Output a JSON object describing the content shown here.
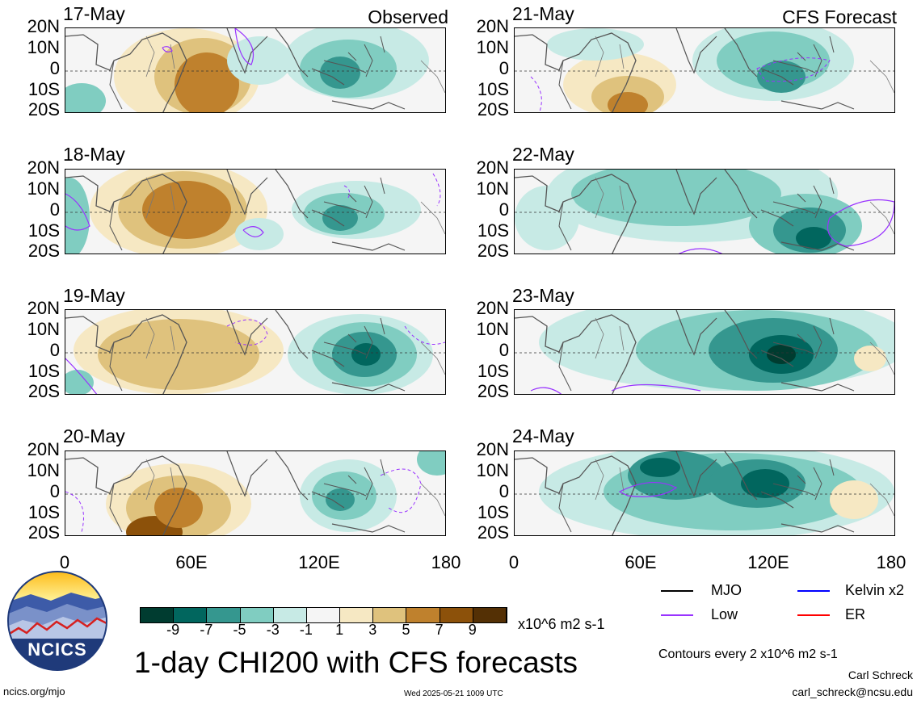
{
  "panels": {
    "left_title": "Observed",
    "right_title": "CFS Forecast",
    "left_dates": [
      "17-May",
      "18-May",
      "19-May",
      "20-May"
    ],
    "right_dates": [
      "21-May",
      "22-May",
      "23-May",
      "24-May"
    ]
  },
  "axes": {
    "lat_labels": [
      "20N",
      "10N",
      "0",
      "10S",
      "20S"
    ],
    "lon_labels": [
      "0",
      "60E",
      "120E",
      "180"
    ]
  },
  "colorbar": {
    "ticks": [
      "-9",
      "-7",
      "-5",
      "-3",
      "-1",
      "1",
      "3",
      "5",
      "7",
      "9"
    ],
    "units": "x10^6 m2 s-1",
    "colors": [
      "#003c30",
      "#01665e",
      "#35978f",
      "#80cdc1",
      "#c7eae5",
      "#f5f5f5",
      "#f6e8c3",
      "#dfc27d",
      "#bf812d",
      "#8c510a",
      "#543005"
    ]
  },
  "legend": {
    "items": [
      {
        "label": "MJO",
        "color": "#000000"
      },
      {
        "label": "Kelvin x2",
        "color": "#0000ff"
      },
      {
        "label": "Low",
        "color": "#9933ff"
      },
      {
        "label": "ER",
        "color": "#ff0000"
      }
    ],
    "contours_note": "Contours every 2 x10^6 m2 s-1"
  },
  "title": "1-day CHI200 with CFS forecasts",
  "logo": {
    "text": "NCICS"
  },
  "footer": {
    "url": "ncics.org/mjo",
    "timestamp": "Wed 2025-05-21 1009 UTC",
    "author": "Carl Schreck",
    "email": "carl_schreck@ncsu.edu"
  }
}
